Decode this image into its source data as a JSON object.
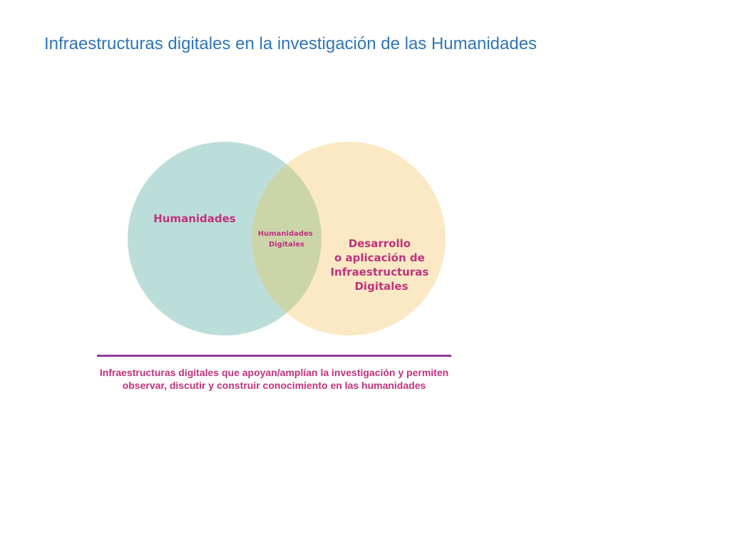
{
  "slide": {
    "title": "Infraestructuras digitales en la investigación de las Humanidades"
  },
  "diagram": {
    "left_circle": {
      "label": "Humanidades",
      "fill": "#bcdeda"
    },
    "right_circle": {
      "label_lines": [
        "Desarrollo",
        "o aplicación de",
        "Infraestructuras",
        "Digitales"
      ],
      "fill": "#fae9c4"
    },
    "intersection": {
      "label_lines": [
        "Humanidades",
        "Digitales"
      ],
      "fill": "#ccd4aa"
    },
    "label_color": "#c0327d"
  },
  "caption": {
    "text": "Infraestructuras digitales que apoyan/amplían la investigación y permiten observar, discutir y construir conocimiento en las humanidades",
    "color": "#c0327d"
  },
  "colors": {
    "title": "#2f75b6",
    "divider": "#8e3a9a"
  }
}
